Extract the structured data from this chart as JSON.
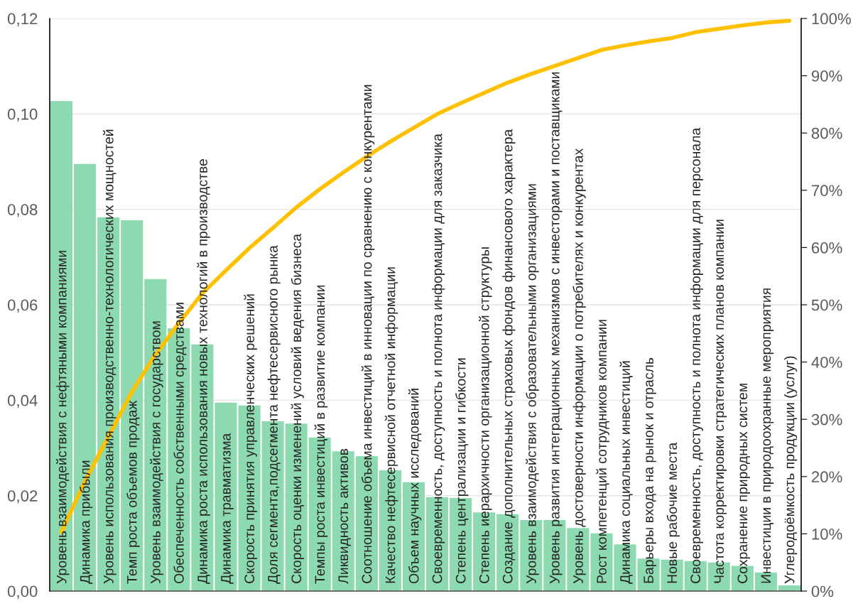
{
  "chart_data": {
    "type": "bar",
    "categories": [
      "Уровень взаимодействия с нефтяными компаниями",
      "Динамика прибыли",
      "Уровень использования производственно-технологических мощностей",
      "Темп роста объемов продаж",
      "Уровень взаимодействия с государством",
      "Обеспеченность собственными средствами",
      "Динамика роста использования новых технологий в производстве",
      "Динамика травматизма",
      "Скорость принятия управленческих решений",
      "Доля сегмента,подсегмента нефтесервисного рынка",
      "Скорость оценки изменений условий ведения бизнеса",
      "Темпы роста инвестиций в развитие компании",
      "Ликвидность активов",
      "Соотношение объема инвестиций в инновации по сравнению с конкурентами",
      "Качество нефтесервисной отчетной информации",
      "Объем научных исследований",
      "Своевременность, доступность и полнота информации для заказчика",
      "Степень централизации и гибкости",
      "Степень иерархичности организационной структуры",
      "Создание дополнительных страховых фондов финансового характера",
      "Уровень взаимодействия с образовательными организациями",
      "Уровень развития интеграционных механизмов с инвесторами и поставщиками",
      "Уровень достоверности информации о потребителях и конкурентах",
      "Рост компетенций сотрудников компании",
      "Динамика социальных инвестиций",
      "Барьеры входа на рынок и отрасль",
      "Новые рабочие места",
      "Своевременность, доступность и полнота информации для персонала",
      "Частота корректировки стратегических планов компании",
      "Сохранение природных систем",
      "Инвестиции в природоохранные мероприятия",
      "Углеродоёмкость продукции (услуг)"
    ],
    "series": [
      {
        "color": "#8dd9b0",
        "values": [
          0.1027,
          0.0895,
          0.0783,
          0.0777,
          0.0654,
          0.0551,
          0.0517,
          0.0395,
          0.0389,
          0.0356,
          0.0351,
          0.0322,
          0.0293,
          0.0283,
          0.0253,
          0.0228,
          0.0197,
          0.0195,
          0.0165,
          0.0161,
          0.0149,
          0.0149,
          0.0132,
          0.0121,
          0.0098,
          0.0068,
          0.0066,
          0.0063,
          0.006,
          0.0053,
          0.0039,
          0.0012
        ]
      },
      {
        "type": "line",
        "axis": "y2",
        "color": "#ffc000",
        "values": [
          10.3,
          19.2,
          27.0,
          34.8,
          41.3,
          46.8,
          52.0,
          56.0,
          59.9,
          63.4,
          67.0,
          70.2,
          73.1,
          75.9,
          78.5,
          80.9,
          83.3,
          85.2,
          87.0,
          88.8,
          90.3,
          91.7,
          93.1,
          94.5,
          95.3,
          96.0,
          96.6,
          97.6,
          98.2,
          98.8,
          99.3,
          99.6
        ]
      }
    ],
    "ylim": [
      0,
      0.12
    ],
    "yticks": [
      {
        "value": 0,
        "label": "0,00"
      },
      {
        "value": 0.02,
        "label": "0,02"
      },
      {
        "value": 0.04,
        "label": "0,04"
      },
      {
        "value": 0.06,
        "label": "0,06"
      },
      {
        "value": 0.08,
        "label": "0,08"
      },
      {
        "value": 0.1,
        "label": "0,10"
      },
      {
        "value": 0.12,
        "label": "0,12"
      }
    ],
    "y2lim": [
      0,
      100
    ],
    "y2ticks": [
      {
        "value": 0,
        "label": "0%"
      },
      {
        "value": 10,
        "label": "10%"
      },
      {
        "value": 20,
        "label": "20%"
      },
      {
        "value": 30,
        "label": "30%"
      },
      {
        "value": 40,
        "label": "40%"
      },
      {
        "value": 50,
        "label": "50%"
      },
      {
        "value": 60,
        "label": "60%"
      },
      {
        "value": 70,
        "label": "70%"
      },
      {
        "value": 80,
        "label": "80%"
      },
      {
        "value": 90,
        "label": "90%"
      },
      {
        "value": 100,
        "label": "100%"
      }
    ],
    "grid": "y",
    "marker": "none",
    "line_style": "solid"
  }
}
